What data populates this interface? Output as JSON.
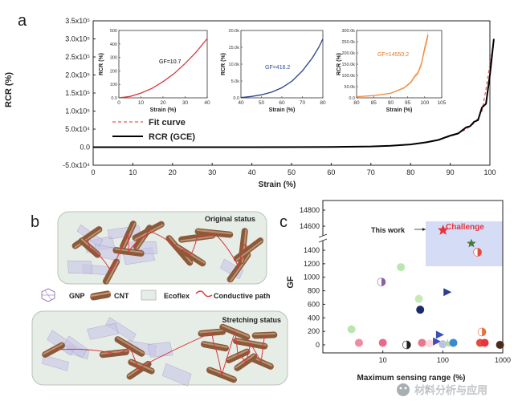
{
  "panel_labels": {
    "a": "a",
    "b": "b",
    "c": "c"
  },
  "chart_data": [
    {
      "id": "a-main",
      "type": "line",
      "xlabel": "Strain (%)",
      "ylabel": "RCR (%)",
      "xlim": [
        0,
        100
      ],
      "ylim": [
        -50000,
        350000
      ],
      "x_ticks": [
        0,
        10,
        20,
        30,
        40,
        50,
        60,
        70,
        80,
        90,
        100
      ],
      "y_ticks": [
        -50000,
        0,
        50000,
        100000,
        150000,
        200000,
        250000,
        300000,
        350000
      ],
      "y_tick_labels": [
        "-5.0x10⁴",
        "0.0",
        "5.0x10⁴",
        "1.0x10⁵",
        "1.5x10⁵",
        "2.0x10⁵",
        "2.5x10⁵",
        "3.0x10⁵",
        "3.5x10⁵"
      ],
      "legend": [
        "Fit curve",
        "RCR (GCE)"
      ],
      "legend_position": "lower-left",
      "series": [
        {
          "name": "Fit curve",
          "style": "dashed",
          "color": "#e05a5a",
          "x": [
            0,
            40,
            60,
            70,
            75,
            80,
            84,
            87,
            90,
            92,
            94,
            96,
            97,
            98,
            99,
            100,
            101
          ],
          "y": [
            0,
            0,
            500,
            2000,
            3500,
            7000,
            13000,
            20000,
            30000,
            38000,
            50000,
            66000,
            80000,
            100000,
            160000,
            230000,
            295000
          ]
        },
        {
          "name": "RCR (GCE)",
          "style": "solid",
          "color": "#000000",
          "x": [
            0,
            40,
            60,
            70,
            75,
            80,
            84,
            87,
            90,
            92,
            94,
            95,
            96,
            97,
            98,
            99,
            100,
            101
          ],
          "y": [
            0,
            0,
            500,
            2000,
            4000,
            7500,
            13500,
            20000,
            32000,
            38000,
            55000,
            58000,
            70000,
            75000,
            110000,
            120000,
            200000,
            300000
          ]
        }
      ]
    },
    {
      "id": "a-inset-1",
      "type": "line",
      "xlabel": "Strain (%)",
      "ylabel": "RCR (%)",
      "xlim": [
        0,
        40
      ],
      "ylim": [
        0,
        500
      ],
      "x_ticks": [
        0,
        10,
        20,
        30,
        40
      ],
      "y_ticks": [
        0,
        100,
        200,
        300,
        400,
        500
      ],
      "y_tick_labels": [
        "0.0",
        "100",
        "200",
        "300",
        "400",
        "500"
      ],
      "annotation": "GF=10.7",
      "annotation_color": "#000000",
      "series": [
        {
          "color": "#d9363e",
          "x": [
            0,
            5,
            10,
            15,
            20,
            25,
            30,
            35,
            40
          ],
          "y": [
            0,
            10,
            35,
            70,
            120,
            180,
            255,
            340,
            440
          ]
        }
      ]
    },
    {
      "id": "a-inset-2",
      "type": "line",
      "xlabel": "Strain (%)",
      "ylabel": "RCR (%)",
      "xlim": [
        40,
        80
      ],
      "ylim": [
        0,
        20000
      ],
      "x_ticks": [
        40,
        50,
        60,
        70,
        80
      ],
      "y_ticks": [
        0,
        5000,
        10000,
        15000,
        20000
      ],
      "y_tick_labels": [
        "0.0",
        "5.0k",
        "10.0k",
        "15.0k",
        "20.0k"
      ],
      "annotation": "GF=416.2",
      "annotation_color": "#2a4a9a",
      "series": [
        {
          "color": "#2a3f8f",
          "x": [
            40,
            45,
            50,
            55,
            60,
            65,
            70,
            75,
            78,
            80
          ],
          "y": [
            100,
            400,
            900,
            1700,
            3000,
            5000,
            8000,
            12000,
            15000,
            17500
          ]
        }
      ]
    },
    {
      "id": "a-inset-3",
      "type": "area",
      "xlabel": "Strain (%)",
      "ylabel": "RCR (%)",
      "xlim": [
        80,
        105
      ],
      "ylim": [
        0,
        300000
      ],
      "x_ticks": [
        80,
        85,
        90,
        95,
        100,
        105
      ],
      "y_ticks": [
        0,
        50000,
        100000,
        150000,
        200000,
        250000,
        300000
      ],
      "y_tick_labels": [
        "0.0",
        "50.0k",
        "100.0k",
        "150.0k",
        "200.0k",
        "250.0k",
        "300.0k"
      ],
      "annotation": "GF=14550.2",
      "annotation_color": "#e8761e",
      "series": [
        {
          "color": "#f08a3c",
          "x": [
            80,
            85,
            90,
            94,
            96,
            97,
            98,
            99,
            100,
            101
          ],
          "y": [
            5000,
            10000,
            20000,
            45000,
            70000,
            95000,
            110000,
            150000,
            220000,
            280000
          ]
        }
      ]
    },
    {
      "id": "c",
      "type": "scatter",
      "xlabel": "Maximum sensing range (%)",
      "ylabel": "GF",
      "x_scale": "log",
      "xlim": [
        1,
        1000
      ],
      "ylim": [
        0,
        1400
      ],
      "y_break": {
        "upper_ticks": [
          14600,
          14800
        ]
      },
      "x_ticks": [
        10,
        100,
        1000
      ],
      "y_ticks": [
        0,
        200,
        400,
        600,
        800,
        1000,
        1200,
        1400
      ],
      "annotations": [
        "This work",
        "Challenge"
      ],
      "highlight": {
        "label": "This work",
        "x": 101,
        "y": 14550,
        "marker": "star",
        "color": "#e8333c"
      },
      "points": [
        {
          "x": 3,
          "y": 230,
          "color": "#b8e6b0",
          "marker": "circle"
        },
        {
          "x": 4,
          "y": 30,
          "color": "#f08aa4",
          "marker": "circle"
        },
        {
          "x": 9.5,
          "y": 930,
          "color": "#8b5fa8",
          "marker": "circle-half"
        },
        {
          "x": 10,
          "y": 30,
          "color": "#e86a8a",
          "marker": "circle"
        },
        {
          "x": 20,
          "y": 1150,
          "color": "#b8e6b0",
          "marker": "circle"
        },
        {
          "x": 25,
          "y": 0,
          "color": "#222222",
          "marker": "circle-half"
        },
        {
          "x": 40,
          "y": 680,
          "color": "#c8e8b8",
          "marker": "circle"
        },
        {
          "x": 42,
          "y": 520,
          "color": "#1a2a6a",
          "marker": "circle"
        },
        {
          "x": 45,
          "y": 30,
          "color": "#e8798a",
          "marker": "circle"
        },
        {
          "x": 60,
          "y": 20,
          "color": "#ffd8e0",
          "marker": "circle"
        },
        {
          "x": 80,
          "y": 50,
          "color": "#3b4fb5",
          "marker": "triangle"
        },
        {
          "x": 90,
          "y": 150,
          "color": "#3b4fb5",
          "marker": "triangle"
        },
        {
          "x": 100,
          "y": 10,
          "color": "#b9c2e6",
          "marker": "circle"
        },
        {
          "x": 120,
          "y": 20,
          "color": "#b8d8a8",
          "marker": "star"
        },
        {
          "x": 120,
          "y": 780,
          "color": "#2a3f8f",
          "marker": "triangle"
        },
        {
          "x": 150,
          "y": 30,
          "color": "#3a8ad0",
          "marker": "circle"
        },
        {
          "x": 300,
          "y": 1500,
          "color": "#4a7a3a",
          "marker": "star"
        },
        {
          "x": 380,
          "y": 1370,
          "color": "#e84a3a",
          "marker": "circle-half"
        },
        {
          "x": 420,
          "y": 30,
          "color": "#e84a3a",
          "marker": "circle"
        },
        {
          "x": 450,
          "y": 190,
          "color": "#e87040",
          "marker": "circle-half"
        },
        {
          "x": 500,
          "y": 30,
          "color": "#e8333c",
          "marker": "circle"
        },
        {
          "x": 900,
          "y": 0,
          "color": "#4a2a1a",
          "marker": "circle"
        }
      ]
    }
  ],
  "panel_b": {
    "original_label": "Original status",
    "stretching_label": "Stretching status",
    "legend": {
      "gnp": "GNP",
      "cnt": "CNT",
      "ecoflex": "Ecoflex",
      "path": "Conductive path"
    }
  },
  "watermark": "材料分析与应用"
}
